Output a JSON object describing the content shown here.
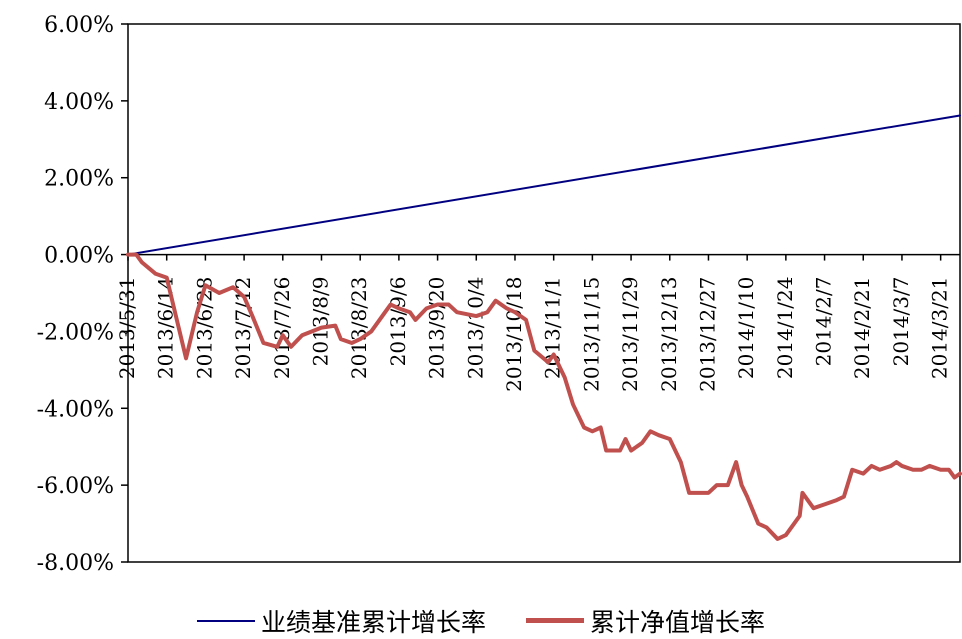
{
  "chart_data": {
    "type": "line",
    "title": "",
    "xlabel": "",
    "ylabel": "",
    "ylim": [
      -8,
      6
    ],
    "y_ticks": [
      6,
      4,
      2,
      0,
      -2,
      -4,
      -6,
      -8
    ],
    "y_tick_labels": [
      "6.00%",
      "4.00%",
      "2.00%",
      "0.00%",
      "-2.00%",
      "-4.00%",
      "-6.00%",
      "-8.00%"
    ],
    "x_range": [
      "2013-05-31",
      "2014-03-28"
    ],
    "x_tick_dates": [
      "2013-05-31",
      "2013-06-14",
      "2013-06-28",
      "2013-07-12",
      "2013-07-26",
      "2013-08-09",
      "2013-08-23",
      "2013-09-06",
      "2013-09-20",
      "2013-10-04",
      "2013-10-18",
      "2013-11-01",
      "2013-11-15",
      "2013-11-29",
      "2013-12-13",
      "2013-12-27",
      "2014-01-10",
      "2014-01-24",
      "2014-02-07",
      "2014-02-21",
      "2014-03-07",
      "2014-03-21"
    ],
    "x_tick_labels": [
      "2013/5/31",
      "2013/6/14",
      "2013/6/28",
      "2013/7/12",
      "2013/7/26",
      "2013/8/9",
      "2013/8/23",
      "2013/9/6",
      "2013/9/20",
      "2013/10/4",
      "2013/10/18",
      "2013/11/1",
      "2013/11/15",
      "2013/11/29",
      "2013/12/13",
      "2013/12/27",
      "2014/1/10",
      "2014/1/24",
      "2014/2/7",
      "2014/2/21",
      "2014/3/7",
      "2014/3/21"
    ],
    "grid": false,
    "legend_position": "bottom",
    "series": [
      {
        "name": "业绩基准累计增长率",
        "color": "#000080",
        "points": [
          [
            "2013-05-31",
            0.0
          ],
          [
            "2014-03-28",
            3.62
          ]
        ]
      },
      {
        "name": "累计净值增长率",
        "color": "#C0504D",
        "points": [
          [
            "2013-05-31",
            0.0
          ],
          [
            "2013-06-03",
            0.0
          ],
          [
            "2013-06-05",
            -0.2
          ],
          [
            "2013-06-10",
            -0.5
          ],
          [
            "2013-06-14",
            -0.6
          ],
          [
            "2013-06-17",
            -1.5
          ],
          [
            "2013-06-21",
            -2.7
          ],
          [
            "2013-06-25",
            -1.5
          ],
          [
            "2013-06-28",
            -0.8
          ],
          [
            "2013-07-03",
            -1.0
          ],
          [
            "2013-07-08",
            -0.85
          ],
          [
            "2013-07-12",
            -1.1
          ],
          [
            "2013-07-15",
            -1.6
          ],
          [
            "2013-07-19",
            -2.3
          ],
          [
            "2013-07-24",
            -2.4
          ],
          [
            "2013-07-26",
            -2.1
          ],
          [
            "2013-07-29",
            -2.4
          ],
          [
            "2013-08-02",
            -2.1
          ],
          [
            "2013-08-09",
            -1.9
          ],
          [
            "2013-08-14",
            -1.85
          ],
          [
            "2013-08-16",
            -2.2
          ],
          [
            "2013-08-20",
            -2.3
          ],
          [
            "2013-08-23",
            -2.2
          ],
          [
            "2013-08-27",
            -2.0
          ],
          [
            "2013-08-30",
            -1.7
          ],
          [
            "2013-09-03",
            -1.3
          ],
          [
            "2013-09-06",
            -1.4
          ],
          [
            "2013-09-10",
            -1.5
          ],
          [
            "2013-09-12",
            -1.7
          ],
          [
            "2013-09-16",
            -1.4
          ],
          [
            "2013-09-20",
            -1.3
          ],
          [
            "2013-09-24",
            -1.3
          ],
          [
            "2013-09-27",
            -1.5
          ],
          [
            "2013-10-04",
            -1.6
          ],
          [
            "2013-10-08",
            -1.5
          ],
          [
            "2013-10-11",
            -1.2
          ],
          [
            "2013-10-15",
            -1.4
          ],
          [
            "2013-10-18",
            -1.5
          ],
          [
            "2013-10-22",
            -1.7
          ],
          [
            "2013-10-25",
            -2.5
          ],
          [
            "2013-10-30",
            -2.8
          ],
          [
            "2013-11-01",
            -2.6
          ],
          [
            "2013-11-05",
            -3.2
          ],
          [
            "2013-11-08",
            -3.9
          ],
          [
            "2013-11-12",
            -4.5
          ],
          [
            "2013-11-15",
            -4.6
          ],
          [
            "2013-11-18",
            -4.5
          ],
          [
            "2013-11-20",
            -5.1
          ],
          [
            "2013-11-25",
            -5.1
          ],
          [
            "2013-11-27",
            -4.8
          ],
          [
            "2013-11-29",
            -5.1
          ],
          [
            "2013-12-03",
            -4.9
          ],
          [
            "2013-12-06",
            -4.6
          ],
          [
            "2013-12-09",
            -4.7
          ],
          [
            "2013-12-13",
            -4.8
          ],
          [
            "2013-12-17",
            -5.4
          ],
          [
            "2013-12-20",
            -6.2
          ],
          [
            "2013-12-24",
            -6.2
          ],
          [
            "2013-12-27",
            -6.2
          ],
          [
            "2013-12-30",
            -6.0
          ],
          [
            "2014-01-03",
            -6.0
          ],
          [
            "2014-01-06",
            -5.4
          ],
          [
            "2014-01-08",
            -6.0
          ],
          [
            "2014-01-10",
            -6.3
          ],
          [
            "2014-01-14",
            -7.0
          ],
          [
            "2014-01-17",
            -7.1
          ],
          [
            "2014-01-21",
            -7.4
          ],
          [
            "2014-01-24",
            -7.3
          ],
          [
            "2014-01-27",
            -7.0
          ],
          [
            "2014-01-29",
            -6.8
          ],
          [
            "2014-01-30",
            -6.2
          ],
          [
            "2014-02-03",
            -6.6
          ],
          [
            "2014-02-07",
            -6.5
          ],
          [
            "2014-02-11",
            -6.4
          ],
          [
            "2014-02-14",
            -6.3
          ],
          [
            "2014-02-17",
            -5.6
          ],
          [
            "2014-02-21",
            -5.7
          ],
          [
            "2014-02-24",
            -5.5
          ],
          [
            "2014-02-27",
            -5.6
          ],
          [
            "2014-03-03",
            -5.5
          ],
          [
            "2014-03-05",
            -5.4
          ],
          [
            "2014-03-07",
            -5.5
          ],
          [
            "2014-03-11",
            -5.6
          ],
          [
            "2014-03-14",
            -5.6
          ],
          [
            "2014-03-17",
            -5.5
          ],
          [
            "2014-03-21",
            -5.6
          ],
          [
            "2014-03-24",
            -5.6
          ],
          [
            "2014-03-26",
            -5.8
          ],
          [
            "2014-03-28",
            -5.7
          ]
        ]
      }
    ]
  }
}
